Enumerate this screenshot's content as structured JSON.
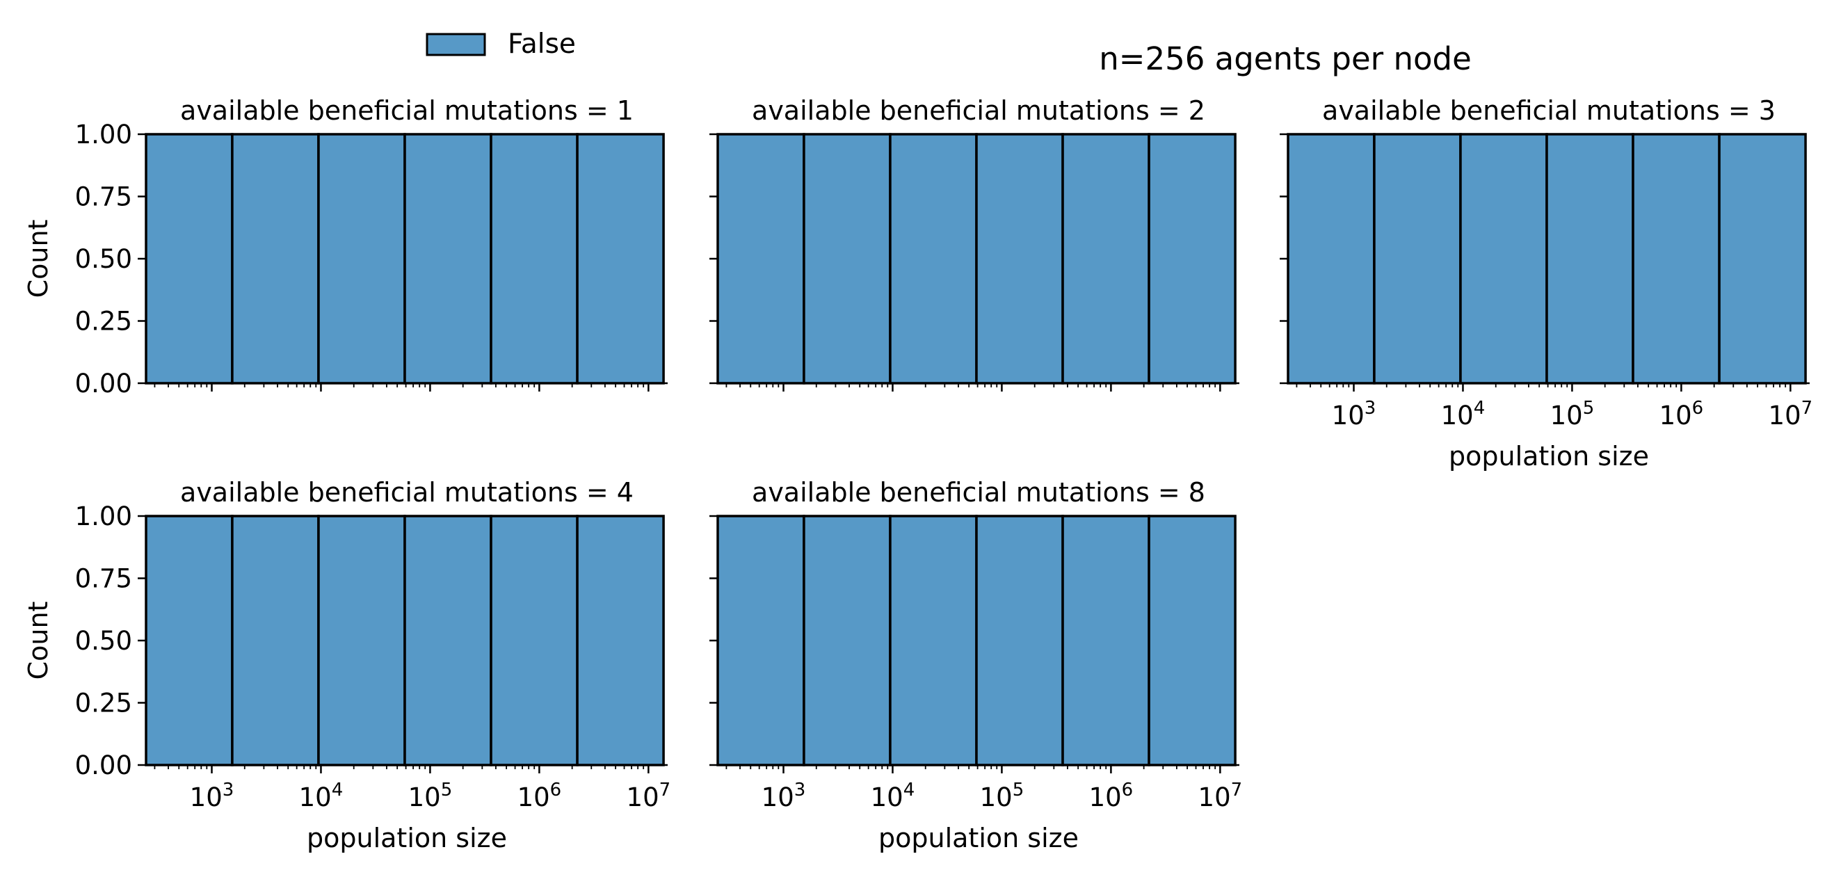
{
  "suptitle": "n=256 agents per node",
  "legend": {
    "entries": [
      {
        "label": "False",
        "color": "#5799c7"
      }
    ],
    "placement": "top-left, above the panels"
  },
  "colors": {
    "bar_fill": "#5799c7",
    "bar_edge": "#000000",
    "axis": "#000000"
  },
  "chart_data": [
    {
      "type": "bar",
      "title": "available beneficial mutations = 1",
      "xlabel": "",
      "ylabel": "Count",
      "xscale": "log",
      "xlim": [
        250,
        15000000
      ],
      "ylim": [
        0,
        1
      ],
      "xticklabels_visible": false,
      "bin_edges": [
        250,
        1540,
        9500,
        58600,
        361500,
        2230000,
        13750000
      ],
      "values": [
        1,
        1,
        1,
        1,
        1,
        1
      ],
      "series": [
        {
          "name": "False",
          "values": [
            1,
            1,
            1,
            1,
            1,
            1
          ]
        }
      ]
    },
    {
      "type": "bar",
      "title": "available beneficial mutations = 2",
      "xlabel": "",
      "ylabel": "",
      "xscale": "log",
      "xlim": [
        250,
        15000000
      ],
      "ylim": [
        0,
        1
      ],
      "xticklabels_visible": false,
      "bin_edges": [
        250,
        1540,
        9500,
        58600,
        361500,
        2230000,
        13750000
      ],
      "values": [
        1,
        1,
        1,
        1,
        1,
        1
      ],
      "series": [
        {
          "name": "False",
          "values": [
            1,
            1,
            1,
            1,
            1,
            1
          ]
        }
      ]
    },
    {
      "type": "bar",
      "title": "available beneficial mutations = 3",
      "xlabel": "population size",
      "ylabel": "",
      "xscale": "log",
      "xlim": [
        250,
        15000000
      ],
      "ylim": [
        0,
        1
      ],
      "xticklabels_visible": true,
      "bin_edges": [
        250,
        1540,
        9500,
        58600,
        361500,
        2230000,
        13750000
      ],
      "values": [
        1,
        1,
        1,
        1,
        1,
        1
      ],
      "series": [
        {
          "name": "False",
          "values": [
            1,
            1,
            1,
            1,
            1,
            1
          ]
        }
      ]
    },
    {
      "type": "bar",
      "title": "available beneficial mutations = 4",
      "xlabel": "population size",
      "ylabel": "Count",
      "xscale": "log",
      "xlim": [
        250,
        15000000
      ],
      "ylim": [
        0,
        1
      ],
      "xticklabels_visible": true,
      "bin_edges": [
        250,
        1540,
        9500,
        58600,
        361500,
        2230000,
        13750000
      ],
      "values": [
        1,
        1,
        1,
        1,
        1,
        1
      ],
      "series": [
        {
          "name": "False",
          "values": [
            1,
            1,
            1,
            1,
            1,
            1
          ]
        }
      ]
    },
    {
      "type": "bar",
      "title": "available beneficial mutations = 8",
      "xlabel": "population size",
      "ylabel": "",
      "xscale": "log",
      "xlim": [
        250,
        15000000
      ],
      "ylim": [
        0,
        1
      ],
      "xticklabels_visible": true,
      "bin_edges": [
        250,
        1540,
        9500,
        58600,
        361500,
        2230000,
        13750000
      ],
      "values": [
        1,
        1,
        1,
        1,
        1,
        1
      ],
      "series": [
        {
          "name": "False",
          "values": [
            1,
            1,
            1,
            1,
            1,
            1
          ]
        }
      ]
    }
  ],
  "y_ticks": [
    {
      "value": 0,
      "label": "0.00"
    },
    {
      "value": 0.25,
      "label": "0.25"
    },
    {
      "value": 0.5,
      "label": "0.50"
    },
    {
      "value": 0.75,
      "label": "0.75"
    },
    {
      "value": 1,
      "label": "1.00"
    }
  ],
  "x_major_ticks": [
    {
      "value": 1000,
      "base": "10",
      "exp": "3"
    },
    {
      "value": 10000,
      "base": "10",
      "exp": "4"
    },
    {
      "value": 100000,
      "base": "10",
      "exp": "5"
    },
    {
      "value": 1000000,
      "base": "10",
      "exp": "6"
    },
    {
      "value": 10000000,
      "base": "10",
      "exp": "7"
    }
  ]
}
